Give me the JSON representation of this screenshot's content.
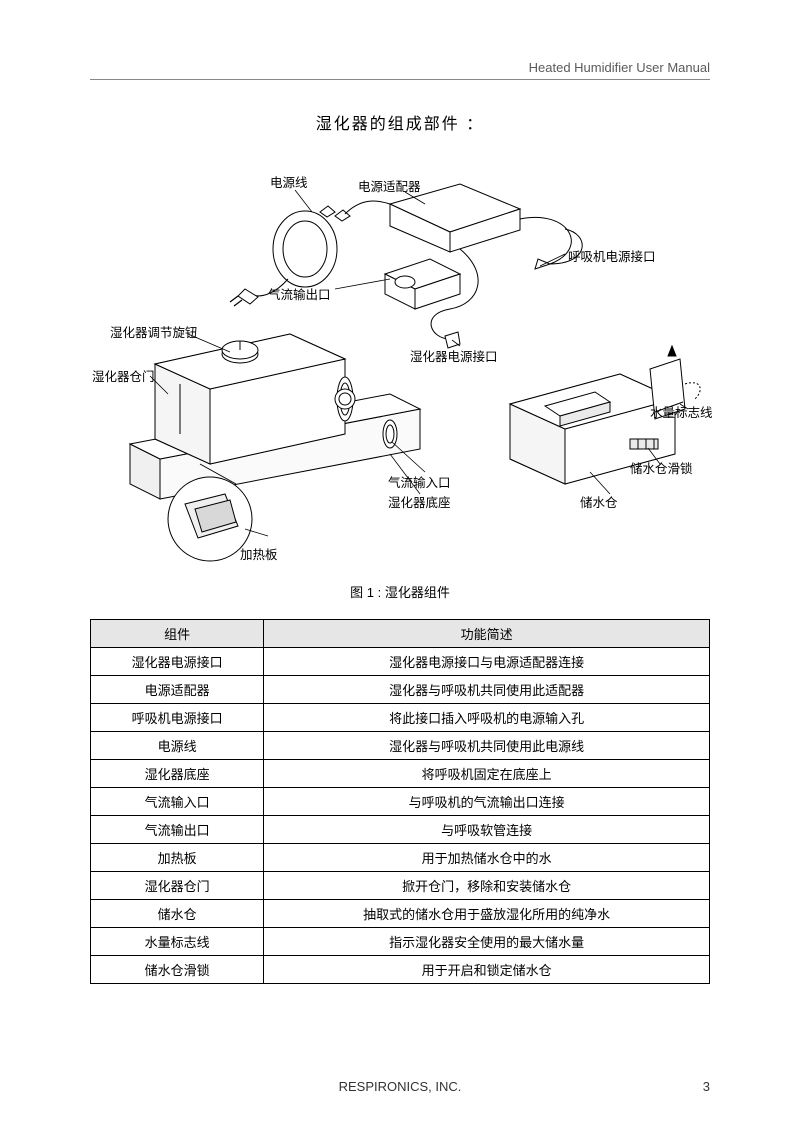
{
  "header": {
    "right_text": "Heated Humidifier User Manual"
  },
  "title": "湿化器的组成部件   ：",
  "diagram": {
    "labels": {
      "power_cord": "电源线",
      "power_adapter": "电源适配器",
      "ventilator_power_port": "呼吸机电源接口",
      "airflow_outlet": "气流输出口",
      "adjustment_knob": "湿化器调节旋钮",
      "door": "湿化器仓门",
      "humidifier_power_port": "湿化器电源接口",
      "water_line": "水量标志线",
      "airflow_inlet": "气流输入口",
      "reservoir_lock": "储水仓滑锁",
      "base": "湿化器底座",
      "reservoir": "储水仓",
      "heater_plate": "加热板"
    },
    "stroke_color": "#000000",
    "fill_color": "#ffffff",
    "light_fill": "#f5f5f5"
  },
  "figure_caption": "图 1 : 湿化器组件",
  "table": {
    "headers": [
      "组件",
      "功能简述"
    ],
    "rows": [
      [
        "湿化器电源接口",
        "湿化器电源接口与电源适配器连接"
      ],
      [
        "电源适配器",
        "湿化器与呼吸机共同使用此适配器"
      ],
      [
        "呼吸机电源接口",
        "将此接口插入呼吸机的电源输入孔"
      ],
      [
        "电源线",
        "湿化器与呼吸机共同使用此电源线"
      ],
      [
        "湿化器底座",
        "将呼吸机固定在底座上"
      ],
      [
        "气流输入口",
        "与呼吸机的气流输出口连接"
      ],
      [
        "气流输出口",
        "与呼吸软管连接"
      ],
      [
        "加热板",
        "用于加热储水仓中的水"
      ],
      [
        "湿化器仓门",
        "掀开仓门，移除和安装储水仓"
      ],
      [
        "储水仓",
        "抽取式的储水仓用于盛放湿化所用的纯净水"
      ],
      [
        "水量标志线",
        "指示湿化器安全使用的最大储水量"
      ],
      [
        "储水仓滑锁",
        "用于开启和锁定储水仓"
      ]
    ]
  },
  "footer": {
    "company": "RESPIRONICS, INC.",
    "page_number": "3"
  }
}
